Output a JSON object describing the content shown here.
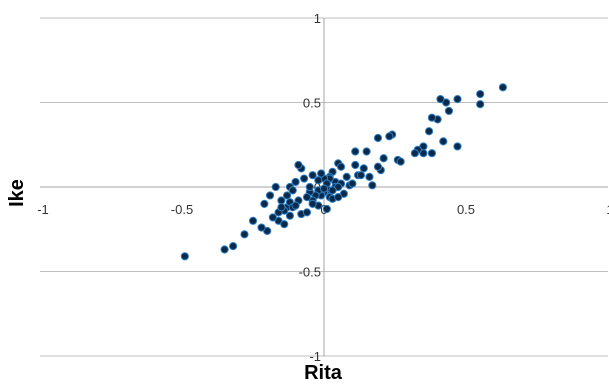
{
  "chart_data": {
    "type": "scatter",
    "title": "",
    "xlabel": "Rita",
    "ylabel": "Ike",
    "xlim": [
      -1,
      1
    ],
    "ylim": [
      -1,
      1
    ],
    "x_ticks": [
      "-1",
      "-0.5",
      "0",
      "0.5",
      "1"
    ],
    "y_ticks": [
      "-1",
      "-0.5",
      "0",
      "0.5",
      "1"
    ],
    "grid": "horizontal",
    "legend": "none",
    "colors": {
      "marker_fill": "#0b2a4a",
      "marker_stroke": "#2e7fc4",
      "gridline": "#bfbfbf",
      "axis": "#a6a6a6"
    },
    "series": [
      {
        "x": [
          0.63,
          0.55,
          0.55,
          0.47,
          0.43,
          0.41,
          0.44,
          0.4,
          0.47,
          0.42,
          0.38,
          0.37,
          0.35,
          0.38,
          0.35,
          0.33,
          0.32,
          0.26,
          0.27,
          0.24,
          0.23,
          0.19,
          0.21,
          0.2,
          0.15,
          0.19,
          0.16,
          0.14,
          0.17,
          0.11,
          0.11,
          0.12,
          0.09,
          0.08,
          0.05,
          0.06,
          0.03,
          0.02,
          0.04,
          0.02,
          0.0,
          0.06,
          0.04,
          0.02,
          0.01,
          0.0,
          -0.01,
          0.02,
          0.03,
          -0.02,
          -0.02,
          -0.03,
          -0.04,
          -0.05,
          -0.06,
          -0.04,
          -0.07,
          -0.08,
          -0.09,
          -0.1,
          -0.12,
          -0.11,
          -0.13,
          -0.09,
          -0.15,
          -0.13,
          -0.14,
          -0.16,
          -0.12,
          -0.11,
          -0.08,
          -0.06,
          -0.1,
          -0.17,
          -0.19,
          -0.21,
          -0.16,
          -0.18,
          -0.14,
          0.07,
          0.05,
          0.01,
          -0.02,
          -0.05,
          -0.01,
          0.0,
          0.03,
          0.1,
          0.13,
          0.05,
          0.01,
          -0.04,
          -0.12,
          -0.15,
          -0.2,
          -0.22,
          -0.28,
          -0.25,
          -0.32,
          -0.35,
          -0.49
        ],
        "y": [
          0.59,
          0.55,
          0.49,
          0.52,
          0.5,
          0.52,
          0.45,
          0.4,
          0.24,
          0.27,
          0.41,
          0.33,
          0.24,
          0.2,
          0.2,
          0.22,
          0.2,
          0.16,
          0.15,
          0.31,
          0.3,
          0.29,
          0.17,
          0.1,
          0.21,
          0.12,
          0.06,
          0.11,
          0.01,
          0.21,
          0.13,
          0.07,
          0.01,
          0.06,
          0.14,
          0.12,
          0.09,
          0.06,
          0.03,
          0.05,
          0.05,
          0.02,
          0.0,
          -0.02,
          -0.01,
          -0.03,
          -0.05,
          -0.06,
          -0.07,
          -0.11,
          -0.02,
          -0.05,
          -0.08,
          -0.03,
          -0.06,
          0.07,
          0.05,
          0.11,
          0.13,
          0.03,
          0.0,
          -0.02,
          -0.05,
          -0.08,
          -0.08,
          -0.12,
          -0.14,
          -0.15,
          -0.09,
          -0.12,
          -0.16,
          -0.15,
          -0.11,
          0.0,
          -0.05,
          -0.1,
          -0.2,
          -0.18,
          -0.22,
          -0.04,
          0.0,
          0.02,
          0.04,
          0.0,
          0.08,
          -0.01,
          -0.02,
          0.02,
          0.07,
          -0.06,
          -0.13,
          -0.1,
          -0.17,
          -0.12,
          -0.26,
          -0.24,
          -0.28,
          -0.2,
          -0.35,
          -0.37,
          -0.41
        ]
      }
    ]
  }
}
